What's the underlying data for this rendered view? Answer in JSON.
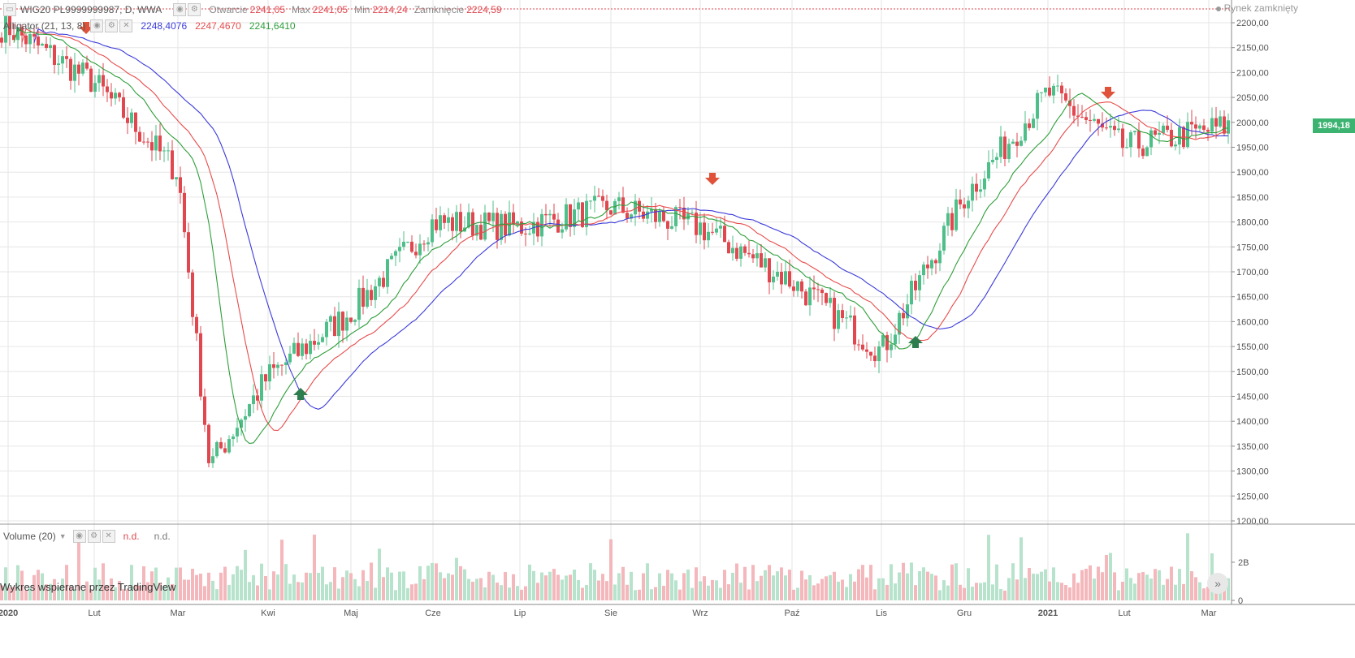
{
  "header": {
    "symbol": "WIG20 PL9999999987, D, WWA",
    "open_label": "Otwarcie",
    "open_value": "2241,05",
    "max_label": "Max",
    "max_value": "2241,05",
    "min_label": "Min",
    "min_value": "2214,24",
    "close_label": "Zamknięcie",
    "close_value": "2224,59",
    "status": "Rynek zamknięty"
  },
  "alligator": {
    "label": "Alligator (21, 13, 8)",
    "jaw_value": "2248,4076",
    "teeth_value": "2247,4670",
    "lips_value": "2241,6410"
  },
  "volume_legend": {
    "label": "Volume (20)",
    "v1": "n.d.",
    "v2": "n.d."
  },
  "credit": "Wykres wspierane przez TradingView",
  "last_price": "1994,18",
  "colors": {
    "up": "#4fbf8a",
    "down": "#e0474f",
    "jaw": "#3b3bdb",
    "teeth": "#e84c4c",
    "lips": "#2e9e3a"
  },
  "chart_data": {
    "type": "candlestick",
    "title": "WIG20 PL9999999987, D, WWA",
    "x_axis_labels": [
      "2020",
      "Lut",
      "Mar",
      "Kwi",
      "Maj",
      "Cze",
      "Lip",
      "Sie",
      "Wrz",
      "Paź",
      "Lis",
      "Gru",
      "2021",
      "Lut",
      "Mar"
    ],
    "y_axis_labels": [
      "2200,00",
      "2150,00",
      "2100,00",
      "2050,00",
      "2000,00",
      "1950,00",
      "1900,00",
      "1850,00",
      "1800,00",
      "1750,00",
      "1700,00",
      "1650,00",
      "1600,00",
      "1550,00",
      "1500,00",
      "1450,00",
      "1400,00",
      "1350,00",
      "1300,00",
      "1250,00",
      "1200,00"
    ],
    "ylim": [
      1200,
      2200
    ],
    "volume_axis_labels": [
      "2B",
      "0"
    ],
    "approx_close_path": [
      {
        "x": "2020",
        "y": 2190
      },
      {
        "x": "Lut",
        "y": 2080
      },
      {
        "x": "Mar",
        "y": 1900
      },
      {
        "x": "Mar (min)",
        "y": 1310
      },
      {
        "x": "Kwi",
        "y": 1490
      },
      {
        "x": "Maj",
        "y": 1620
      },
      {
        "x": "Cze",
        "y": 1800
      },
      {
        "x": "Lip",
        "y": 1790
      },
      {
        "x": "Sie",
        "y": 1830
      },
      {
        "x": "Wrz",
        "y": 1790
      },
      {
        "x": "Paź",
        "y": 1680
      },
      {
        "x": "Lis",
        "y": 1540
      },
      {
        "x": "Gru",
        "y": 1850
      },
      {
        "x": "2021",
        "y": 2060
      },
      {
        "x": "Lut",
        "y": 1950
      },
      {
        "x": "Mar",
        "y": 1994.18
      }
    ],
    "signals": [
      {
        "type": "sell",
        "at": "Lut"
      },
      {
        "type": "buy",
        "at": "Kwi"
      },
      {
        "type": "sell",
        "at": "Wrz"
      },
      {
        "type": "buy",
        "at": "Lis"
      },
      {
        "type": "sell",
        "at": "2021"
      }
    ],
    "series": [
      {
        "name": "Alligator (21, 13, 8)",
        "last_values": [
          "2248,4076",
          "2247,4670",
          "2241,6410"
        ]
      },
      {
        "name": "Volume (20)"
      }
    ]
  }
}
